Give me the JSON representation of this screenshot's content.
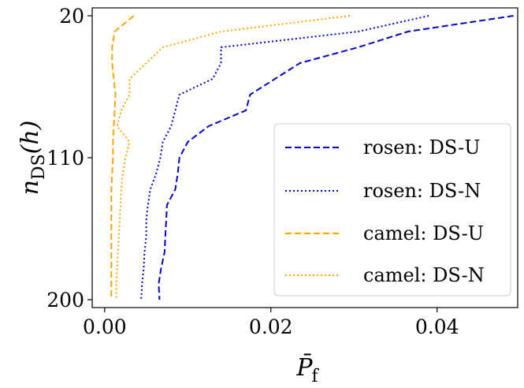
{
  "chart_data": {
    "type": "line",
    "title": "",
    "xlabel": "P̄f",
    "ylabel": "nDS(h)",
    "xlim": [
      -0.0015,
      0.0497
    ],
    "ylim": [
      205,
      15
    ],
    "y_inverted": true,
    "grid": false,
    "legend_position": "lower-right",
    "x_ticks": [
      {
        "value": 0.0,
        "label": "0.00"
      },
      {
        "value": 0.02,
        "label": "0.02"
      },
      {
        "value": 0.04,
        "label": "0.04"
      }
    ],
    "y_ticks": [
      {
        "value": 20,
        "label": "20"
      },
      {
        "value": 110,
        "label": "110"
      },
      {
        "value": 200,
        "label": "200"
      }
    ],
    "y": [
      20,
      30,
      40,
      50,
      60,
      70,
      80,
      90,
      100,
      110,
      120,
      130,
      140,
      150,
      160,
      170,
      180,
      190,
      200
    ],
    "series": [
      {
        "name": "rosen: DS-U",
        "color": "#0000dd",
        "dash": "dashed",
        "x": [
          0.0492,
          0.0365,
          0.0305,
          0.0235,
          0.0205,
          0.0175,
          0.017,
          0.0125,
          0.01,
          0.009,
          0.0088,
          0.0085,
          0.0075,
          0.0074,
          0.0073,
          0.0072,
          0.0068,
          0.0065,
          0.0066
        ]
      },
      {
        "name": "rosen: DS-N",
        "color": "#0000dd",
        "dash": "dotted",
        "x": [
          0.039,
          0.0305,
          0.014,
          0.014,
          0.013,
          0.009,
          0.0085,
          0.008,
          0.007,
          0.0067,
          0.0062,
          0.0055,
          0.0052,
          0.005,
          0.005,
          0.0048,
          0.0047,
          0.0045,
          0.0044
        ]
      },
      {
        "name": "camel: DS-U",
        "color": "#ffa500",
        "dash": "dashed",
        "x": [
          0.0035,
          0.0012,
          0.0009,
          0.0009,
          0.0011,
          0.0013,
          0.0012,
          0.0011,
          0.001,
          0.001,
          0.0009,
          0.0008,
          0.0008,
          0.0008,
          0.0008,
          0.0008,
          0.0008,
          0.0008,
          0.0008
        ]
      },
      {
        "name": "camel: DS-N",
        "color": "#ffa500",
        "dash": "dotted",
        "x": [
          0.0295,
          0.014,
          0.007,
          0.005,
          0.003,
          0.003,
          0.002,
          0.0015,
          0.003,
          0.0025,
          0.0022,
          0.002,
          0.0019,
          0.0018,
          0.0017,
          0.0016,
          0.0015,
          0.0014,
          0.0014
        ]
      }
    ]
  }
}
